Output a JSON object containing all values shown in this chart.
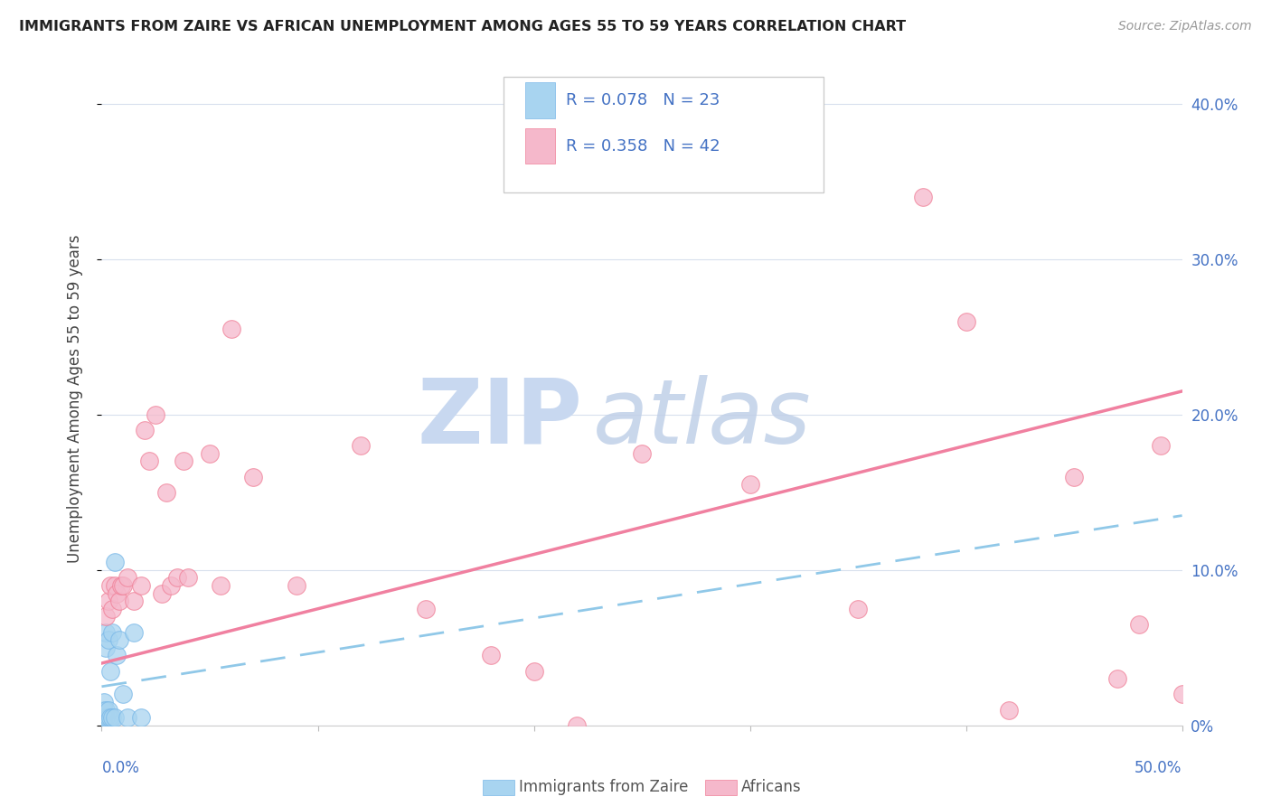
{
  "title": "IMMIGRANTS FROM ZAIRE VS AFRICAN UNEMPLOYMENT AMONG AGES 55 TO 59 YEARS CORRELATION CHART",
  "source": "Source: ZipAtlas.com",
  "ylabel": "Unemployment Among Ages 55 to 59 years",
  "xlim": [
    0.0,
    0.5
  ],
  "ylim": [
    0.0,
    0.42
  ],
  "blue_color": "#a8d4f0",
  "pink_color": "#f5b8cb",
  "blue_edge_color": "#7ab8e8",
  "pink_edge_color": "#f08098",
  "blue_line_color": "#90c8e8",
  "pink_line_color": "#f080a0",
  "right_axis_color": "#4472c4",
  "grid_color": "#d8e0ed",
  "title_color": "#222222",
  "source_color": "#999999",
  "legend_text_color": "#4472c4",
  "watermark_zip_color": "#c8d8f0",
  "watermark_atlas_color": "#c0d0e8",
  "background_color": "#ffffff",
  "zaire_scatter_x": [
    0.001,
    0.001,
    0.001,
    0.001,
    0.002,
    0.002,
    0.002,
    0.002,
    0.003,
    0.003,
    0.003,
    0.004,
    0.004,
    0.005,
    0.005,
    0.006,
    0.006,
    0.007,
    0.008,
    0.01,
    0.012,
    0.015,
    0.018
  ],
  "zaire_scatter_y": [
    0.0,
    0.005,
    0.01,
    0.015,
    0.005,
    0.01,
    0.05,
    0.06,
    0.005,
    0.01,
    0.055,
    0.005,
    0.035,
    0.005,
    0.06,
    0.005,
    0.105,
    0.045,
    0.055,
    0.02,
    0.005,
    0.06,
    0.005
  ],
  "african_scatter_x": [
    0.002,
    0.003,
    0.004,
    0.005,
    0.006,
    0.007,
    0.008,
    0.009,
    0.01,
    0.012,
    0.015,
    0.018,
    0.02,
    0.022,
    0.025,
    0.028,
    0.03,
    0.032,
    0.035,
    0.038,
    0.04,
    0.05,
    0.055,
    0.06,
    0.07,
    0.09,
    0.12,
    0.15,
    0.18,
    0.2,
    0.22,
    0.25,
    0.3,
    0.35,
    0.38,
    0.4,
    0.42,
    0.45,
    0.47,
    0.48,
    0.49,
    0.5
  ],
  "african_scatter_y": [
    0.07,
    0.08,
    0.09,
    0.075,
    0.09,
    0.085,
    0.08,
    0.09,
    0.09,
    0.095,
    0.08,
    0.09,
    0.19,
    0.17,
    0.2,
    0.085,
    0.15,
    0.09,
    0.095,
    0.17,
    0.095,
    0.175,
    0.09,
    0.255,
    0.16,
    0.09,
    0.18,
    0.075,
    0.045,
    0.035,
    0.0,
    0.175,
    0.155,
    0.075,
    0.34,
    0.26,
    0.01,
    0.16,
    0.03,
    0.065,
    0.18,
    0.02
  ],
  "blue_trendline_x": [
    0.0,
    0.5
  ],
  "blue_trendline_y": [
    0.025,
    0.135
  ],
  "pink_trendline_x": [
    0.0,
    0.5
  ],
  "pink_trendline_y": [
    0.04,
    0.215
  ],
  "yticks": [
    0.0,
    0.1,
    0.2,
    0.3,
    0.4
  ],
  "ytick_labels": [
    "0%",
    "10.0%",
    "20.0%",
    "30.0%",
    "40.0%"
  ],
  "xtick_labels_x": [
    0.0,
    0.5
  ],
  "xtick_labels": [
    "0.0%",
    "50.0%"
  ]
}
